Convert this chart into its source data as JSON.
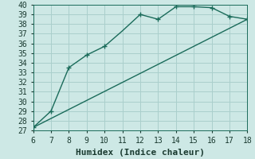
{
  "xlabel": "Humidex (Indice chaleur)",
  "x_min": 6,
  "x_max": 18,
  "y_min": 27,
  "y_max": 40,
  "background_color": "#cde8e5",
  "grid_color": "#aacfcc",
  "line_color": "#1a6b5a",
  "line1_x": [
    6,
    7,
    8,
    9,
    10,
    11,
    12,
    13,
    14,
    15,
    16,
    17,
    18
  ],
  "line1_y": [
    27.3,
    29.0,
    33.5,
    34.8,
    35.7,
    37.3,
    39.0,
    38.5,
    39.8,
    39.8,
    39.7,
    38.8,
    38.5
  ],
  "line1_marker_x": [
    6,
    7,
    8,
    9,
    10,
    12,
    13,
    14,
    15,
    16,
    17,
    18
  ],
  "line1_marker_y": [
    27.3,
    29.0,
    33.5,
    34.8,
    35.7,
    39.0,
    38.5,
    39.8,
    39.8,
    39.7,
    38.8,
    38.5
  ],
  "line2_x": [
    6,
    18
  ],
  "line2_y": [
    27.3,
    38.5
  ],
  "marker": "+",
  "marker_size": 4,
  "line_width": 1.0,
  "font_family": "monospace",
  "xlabel_fontsize": 8,
  "tick_fontsize": 7
}
